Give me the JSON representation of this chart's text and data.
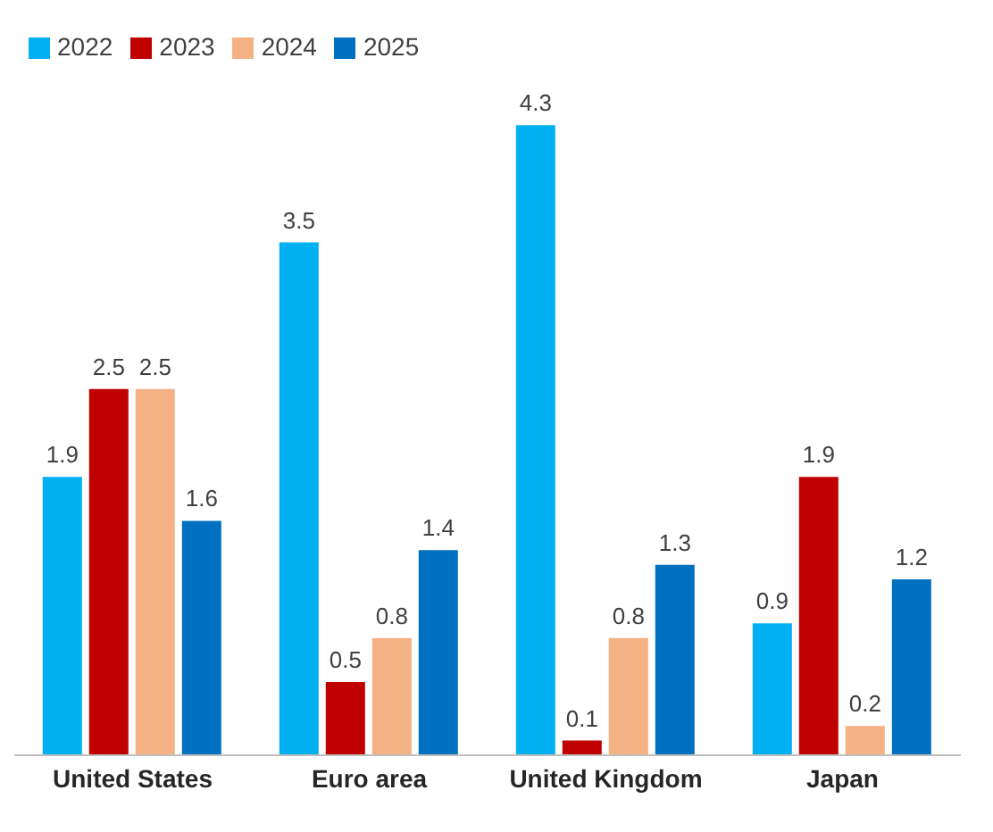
{
  "chart_data": {
    "type": "bar",
    "categories": [
      "United States",
      "Euro area",
      "United Kingdom",
      "Japan"
    ],
    "series": [
      {
        "name": "2022",
        "color": "#00b0f0",
        "values": [
          1.9,
          3.5,
          4.3,
          0.9
        ]
      },
      {
        "name": "2023",
        "color": "#c00000",
        "values": [
          2.5,
          0.5,
          0.1,
          1.9
        ]
      },
      {
        "name": "2024",
        "color": "#f4b183",
        "values": [
          2.5,
          0.8,
          0.8,
          0.2
        ]
      },
      {
        "name": "2025",
        "color": "#0070c0",
        "values": [
          1.6,
          1.4,
          1.3,
          1.2
        ]
      }
    ],
    "data_labels": true,
    "legend": "top left"
  }
}
